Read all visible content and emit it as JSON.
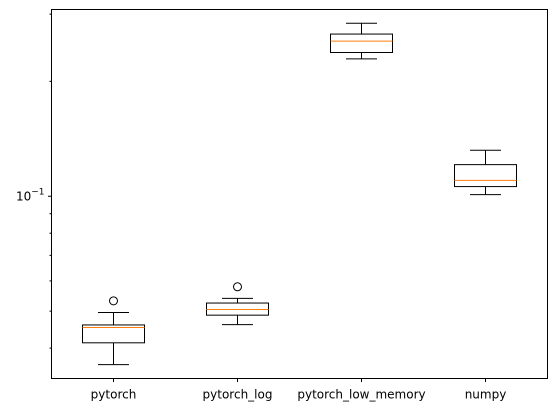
{
  "chart_data": {
    "type": "box",
    "yscale": "log",
    "categories": [
      "pytorch",
      "pytorch_log",
      "pytorch_low_memory",
      "numpy"
    ],
    "boxes": [
      {
        "name": "pytorch",
        "whislo": 0.0362,
        "q1": 0.0413,
        "median": 0.0453,
        "q3": 0.046,
        "whishi": 0.0496,
        "fliers": [
          0.0532
        ]
      },
      {
        "name": "pytorch_log",
        "whislo": 0.0461,
        "q1": 0.0488,
        "median": 0.0505,
        "q3": 0.0525,
        "whishi": 0.054,
        "fliers": [
          0.0579
        ]
      },
      {
        "name": "pytorch_low_memory",
        "whislo": 0.229,
        "q1": 0.238,
        "median": 0.255,
        "q3": 0.266,
        "whishi": 0.284,
        "fliers": []
      },
      {
        "name": "numpy",
        "whislo": 0.101,
        "q1": 0.106,
        "median": 0.11,
        "q3": 0.121,
        "whishi": 0.132,
        "fliers": []
      }
    ],
    "ylim": [
      0.0333,
      0.3085
    ],
    "yticks": [
      {
        "value": 0.1,
        "base": "10",
        "exp": "−1"
      }
    ],
    "colors": {
      "median": "#ff7f0e",
      "box": "#000000"
    }
  }
}
